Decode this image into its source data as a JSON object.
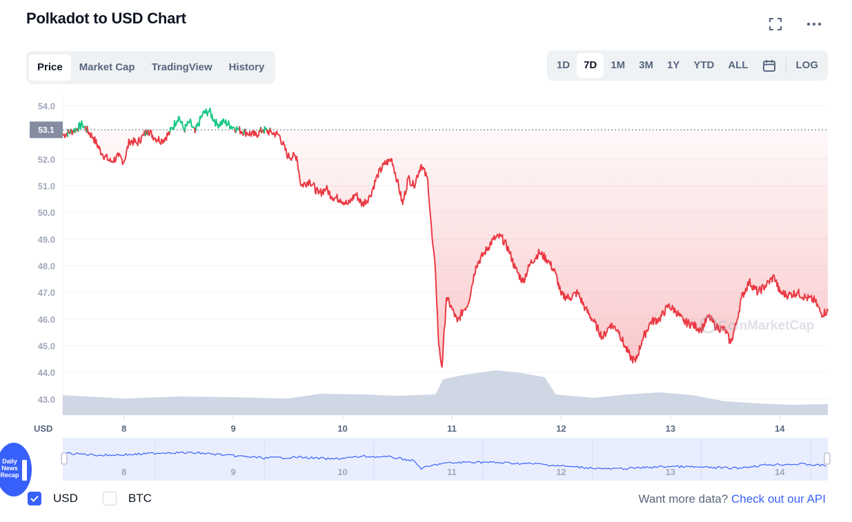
{
  "header": {
    "title": "Polkadot to USD Chart",
    "fullscreen_icon": "fullscreen-icon",
    "more_icon": "more-dots-icon"
  },
  "tabs": [
    {
      "label": "Price",
      "active": true
    },
    {
      "label": "Market Cap",
      "active": false
    },
    {
      "label": "TradingView",
      "active": false
    },
    {
      "label": "History",
      "active": false
    }
  ],
  "ranges": [
    {
      "label": "1D",
      "active": false
    },
    {
      "label": "7D",
      "active": true
    },
    {
      "label": "1M",
      "active": false
    },
    {
      "label": "3M",
      "active": false
    },
    {
      "label": "1Y",
      "active": false
    },
    {
      "label": "YTD",
      "active": false
    },
    {
      "label": "ALL",
      "active": false
    }
  ],
  "calendar_icon": "calendar-icon",
  "log_label": "LOG",
  "chart_data": {
    "type": "line",
    "ylabel": "USD",
    "ylim": [
      42.4,
      54.4
    ],
    "y_ticks": [
      "54.0",
      "52.0",
      "51.0",
      "50.0",
      "49.0",
      "48.0",
      "47.0",
      "46.0",
      "45.0",
      "44.0",
      "43.0"
    ],
    "x_ticks": [
      "8",
      "9",
      "10",
      "11",
      "12",
      "13",
      "14"
    ],
    "reference_value": "53.1",
    "colors": {
      "above": "#16c784",
      "below": "#ea3943",
      "volume": "#cfd6e4",
      "navigator": "#3861fb"
    },
    "x_day_start": 7.44,
    "x_day_end": 14.44,
    "price_series": [
      [
        7.44,
        52.9
      ],
      [
        7.55,
        53.1
      ],
      [
        7.62,
        53.3
      ],
      [
        7.72,
        52.8
      ],
      [
        7.8,
        52.2
      ],
      [
        7.88,
        51.9
      ],
      [
        7.95,
        52.1
      ],
      [
        8.0,
        51.9
      ],
      [
        8.05,
        52.7
      ],
      [
        8.12,
        52.6
      ],
      [
        8.18,
        52.9
      ],
      [
        8.22,
        53.1
      ],
      [
        8.28,
        52.8
      ],
      [
        8.35,
        52.7
      ],
      [
        8.42,
        53.0
      ],
      [
        8.5,
        53.6
      ],
      [
        8.55,
        53.1
      ],
      [
        8.6,
        53.4
      ],
      [
        8.65,
        53.0
      ],
      [
        8.72,
        53.7
      ],
      [
        8.78,
        53.8
      ],
      [
        8.85,
        53.3
      ],
      [
        8.92,
        53.4
      ],
      [
        9.0,
        53.2
      ],
      [
        9.05,
        53.1
      ],
      [
        9.12,
        53.0
      ],
      [
        9.2,
        52.9
      ],
      [
        9.27,
        53.1
      ],
      [
        9.35,
        53.0
      ],
      [
        9.42,
        52.9
      ],
      [
        9.5,
        52.1
      ],
      [
        9.58,
        52.1
      ],
      [
        9.62,
        51.0
      ],
      [
        9.7,
        51.2
      ],
      [
        9.78,
        50.7
      ],
      [
        9.85,
        50.9
      ],
      [
        9.9,
        50.6
      ],
      [
        9.98,
        50.5
      ],
      [
        10.05,
        50.3
      ],
      [
        10.12,
        50.7
      ],
      [
        10.18,
        50.3
      ],
      [
        10.25,
        50.6
      ],
      [
        10.32,
        51.4
      ],
      [
        10.38,
        51.8
      ],
      [
        10.45,
        52.0
      ],
      [
        10.5,
        51.2
      ],
      [
        10.55,
        50.3
      ],
      [
        10.6,
        51.3
      ],
      [
        10.65,
        51.0
      ],
      [
        10.72,
        51.8
      ],
      [
        10.78,
        51.2
      ],
      [
        10.82,
        49.0
      ],
      [
        10.85,
        47.8
      ],
      [
        10.88,
        45.0
      ],
      [
        10.91,
        44.2
      ],
      [
        10.95,
        46.8
      ],
      [
        11.0,
        46.4
      ],
      [
        11.05,
        45.9
      ],
      [
        11.1,
        46.3
      ],
      [
        11.15,
        46.6
      ],
      [
        11.22,
        48.0
      ],
      [
        11.3,
        48.5
      ],
      [
        11.38,
        49.0
      ],
      [
        11.45,
        49.1
      ],
      [
        11.52,
        48.6
      ],
      [
        11.58,
        47.9
      ],
      [
        11.65,
        47.4
      ],
      [
        11.72,
        48.1
      ],
      [
        11.8,
        48.5
      ],
      [
        11.88,
        48.2
      ],
      [
        11.95,
        47.7
      ],
      [
        12.0,
        46.9
      ],
      [
        12.08,
        46.8
      ],
      [
        12.15,
        47.0
      ],
      [
        12.22,
        46.4
      ],
      [
        12.3,
        45.9
      ],
      [
        12.38,
        45.3
      ],
      [
        12.45,
        45.8
      ],
      [
        12.52,
        45.6
      ],
      [
        12.58,
        45.0
      ],
      [
        12.63,
        44.6
      ],
      [
        12.68,
        44.4
      ],
      [
        12.74,
        45.2
      ],
      [
        12.82,
        45.9
      ],
      [
        12.9,
        46.0
      ],
      [
        12.98,
        46.5
      ],
      [
        13.05,
        46.3
      ],
      [
        13.12,
        45.9
      ],
      [
        13.2,
        45.8
      ],
      [
        13.28,
        45.6
      ],
      [
        13.35,
        46.1
      ],
      [
        13.42,
        45.7
      ],
      [
        13.5,
        45.6
      ],
      [
        13.55,
        45.1
      ],
      [
        13.6,
        45.8
      ],
      [
        13.65,
        46.8
      ],
      [
        13.72,
        47.4
      ],
      [
        13.8,
        47.0
      ],
      [
        13.88,
        47.3
      ],
      [
        13.95,
        47.6
      ],
      [
        14.0,
        47.0
      ],
      [
        14.08,
        46.9
      ],
      [
        14.16,
        47.0
      ],
      [
        14.24,
        46.8
      ],
      [
        14.32,
        46.7
      ],
      [
        14.38,
        46.2
      ],
      [
        14.44,
        46.3
      ]
    ],
    "volume_series": [
      [
        7.44,
        0.29
      ],
      [
        8.0,
        0.24
      ],
      [
        8.5,
        0.27
      ],
      [
        9.0,
        0.26
      ],
      [
        9.5,
        0.24
      ],
      [
        9.8,
        0.31
      ],
      [
        10.2,
        0.3
      ],
      [
        10.5,
        0.28
      ],
      [
        10.85,
        0.3
      ],
      [
        10.92,
        0.52
      ],
      [
        11.1,
        0.58
      ],
      [
        11.4,
        0.65
      ],
      [
        11.6,
        0.62
      ],
      [
        11.85,
        0.55
      ],
      [
        11.95,
        0.3
      ],
      [
        12.3,
        0.25
      ],
      [
        12.6,
        0.3
      ],
      [
        12.9,
        0.33
      ],
      [
        13.2,
        0.29
      ],
      [
        13.5,
        0.2
      ],
      [
        13.8,
        0.17
      ],
      [
        14.1,
        0.15
      ],
      [
        14.44,
        0.16
      ]
    ],
    "navigator_series": [
      [
        7.44,
        0.3
      ],
      [
        7.8,
        0.38
      ],
      [
        8.1,
        0.35
      ],
      [
        8.4,
        0.28
      ],
      [
        8.7,
        0.3
      ],
      [
        9.0,
        0.4
      ],
      [
        9.3,
        0.48
      ],
      [
        9.6,
        0.45
      ],
      [
        9.9,
        0.52
      ],
      [
        10.2,
        0.42
      ],
      [
        10.45,
        0.45
      ],
      [
        10.65,
        0.58
      ],
      [
        10.72,
        0.86
      ],
      [
        10.9,
        0.68
      ],
      [
        11.2,
        0.62
      ],
      [
        11.5,
        0.66
      ],
      [
        11.8,
        0.7
      ],
      [
        12.1,
        0.8
      ],
      [
        12.45,
        0.88
      ],
      [
        12.7,
        0.84
      ],
      [
        13.0,
        0.78
      ],
      [
        13.3,
        0.82
      ],
      [
        13.6,
        0.85
      ],
      [
        13.9,
        0.72
      ],
      [
        14.2,
        0.7
      ],
      [
        14.44,
        0.76
      ]
    ]
  },
  "watermark": "CoinMarketCap",
  "legend": {
    "usd_label": "USD",
    "btc_label": "BTC",
    "usd_checked": true,
    "btc_checked": false
  },
  "api": {
    "prefix": "Want more data?",
    "link": "Check out our API"
  },
  "badge": {
    "lines": [
      "Daily",
      "News",
      "Recap"
    ]
  }
}
